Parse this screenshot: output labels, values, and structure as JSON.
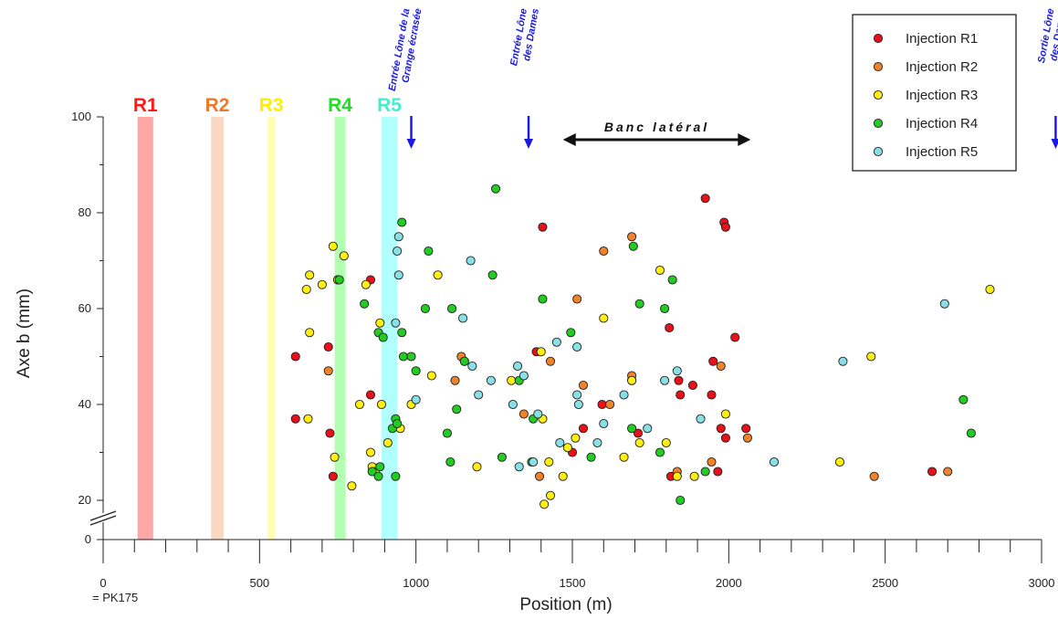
{
  "chart_data": {
    "type": "scatter",
    "title": "",
    "xlabel": "Position (m)",
    "ylabel": "Axe b (mm)",
    "xlim": [
      0,
      3000
    ],
    "ylim": [
      0,
      100
    ],
    "axis_break_y": [
      0,
      20
    ],
    "x_ticks": [
      0,
      500,
      1000,
      1500,
      2000,
      2500,
      3000
    ],
    "y_ticks": [
      0,
      20,
      40,
      60,
      80,
      100
    ],
    "x_tick_sublabel": "= PK175",
    "grid": false,
    "legend_position": "top-right",
    "injection_zones": [
      {
        "label": "R1",
        "x_start": 110,
        "x_end": 160,
        "color": "#ff4d4d",
        "text_color": "#ff1a1a"
      },
      {
        "label": "R2",
        "x_start": 345,
        "x_end": 385,
        "color": "#f4b183",
        "text_color": "#f0782a"
      },
      {
        "label": "R3",
        "x_start": 525,
        "x_end": 550,
        "color": "#ffff66",
        "text_color": "#ffee00"
      },
      {
        "label": "R4",
        "x_start": 740,
        "x_end": 775,
        "color": "#66ff66",
        "text_color": "#22dd22"
      },
      {
        "label": "R5",
        "x_start": 890,
        "x_end": 940,
        "color": "#66ffff",
        "text_color": "#44eecc"
      }
    ],
    "annotations": [
      {
        "lines": [
          "Entrée Lône de la",
          "Grange écrasée"
        ],
        "x": 985
      },
      {
        "lines": [
          "Entrée Lône",
          "des Dames"
        ],
        "x": 1360
      },
      {
        "lines": [
          "Sortie Lône",
          "des Dames"
        ],
        "x": 3045
      }
    ],
    "range_annotation": {
      "label": "Banc latéral",
      "x_start": 1470,
      "x_end": 2070,
      "y": 93
    },
    "series": [
      {
        "name": "Injection R1",
        "color": "#e8101a",
        "points": [
          [
            615,
            50
          ],
          [
            615,
            37
          ],
          [
            720,
            52
          ],
          [
            725,
            34
          ],
          [
            735,
            25
          ],
          [
            750,
            66
          ],
          [
            855,
            66
          ],
          [
            855,
            42
          ],
          [
            1385,
            51
          ],
          [
            1405,
            77
          ],
          [
            1500,
            30
          ],
          [
            1535,
            35
          ],
          [
            1595,
            40
          ],
          [
            1690,
            45
          ],
          [
            1710,
            34
          ],
          [
            1810,
            56
          ],
          [
            1815,
            25
          ],
          [
            1840,
            45
          ],
          [
            1845,
            42
          ],
          [
            1885,
            44
          ],
          [
            1925,
            83
          ],
          [
            1945,
            42
          ],
          [
            1950,
            49
          ],
          [
            1965,
            26
          ],
          [
            1975,
            35
          ],
          [
            1985,
            78
          ],
          [
            1990,
            77
          ],
          [
            1990,
            33
          ],
          [
            2020,
            54
          ],
          [
            2055,
            35
          ],
          [
            2650,
            26
          ]
        ]
      },
      {
        "name": "Injection R2",
        "color": "#f0822a",
        "points": [
          [
            720,
            47
          ],
          [
            1125,
            45
          ],
          [
            1145,
            50
          ],
          [
            1345,
            38
          ],
          [
            1395,
            25
          ],
          [
            1430,
            49
          ],
          [
            1515,
            62
          ],
          [
            1535,
            44
          ],
          [
            1600,
            72
          ],
          [
            1620,
            40
          ],
          [
            1690,
            75
          ],
          [
            1690,
            46
          ],
          [
            1835,
            26
          ],
          [
            1945,
            28
          ],
          [
            1975,
            48
          ],
          [
            2060,
            33
          ],
          [
            2465,
            25
          ],
          [
            2700,
            26
          ]
        ]
      },
      {
        "name": "Injection R3",
        "color": "#ffee11",
        "points": [
          [
            650,
            64
          ],
          [
            655,
            37
          ],
          [
            660,
            67
          ],
          [
            660,
            55
          ],
          [
            700,
            65
          ],
          [
            735,
            73
          ],
          [
            740,
            29
          ],
          [
            750,
            66
          ],
          [
            770,
            71
          ],
          [
            795,
            23
          ],
          [
            820,
            40
          ],
          [
            840,
            65
          ],
          [
            855,
            30
          ],
          [
            860,
            27
          ],
          [
            870,
            26
          ],
          [
            885,
            57
          ],
          [
            890,
            40
          ],
          [
            910,
            32
          ],
          [
            950,
            35
          ],
          [
            985,
            40
          ],
          [
            1050,
            46
          ],
          [
            1070,
            67
          ],
          [
            1155,
            49
          ],
          [
            1195,
            27
          ],
          [
            1305,
            45
          ],
          [
            1400,
            51
          ],
          [
            1405,
            37
          ],
          [
            1410,
            18
          ],
          [
            1425,
            28
          ],
          [
            1430,
            21
          ],
          [
            1470,
            25
          ],
          [
            1485,
            31
          ],
          [
            1510,
            33
          ],
          [
            1600,
            58
          ],
          [
            1665,
            29
          ],
          [
            1690,
            45
          ],
          [
            1715,
            32
          ],
          [
            1780,
            68
          ],
          [
            1800,
            32
          ],
          [
            1835,
            25
          ],
          [
            1890,
            25
          ],
          [
            1990,
            38
          ],
          [
            2355,
            28
          ],
          [
            2455,
            50
          ],
          [
            2835,
            64
          ]
        ]
      },
      {
        "name": "Injection R4",
        "color": "#22cc22",
        "points": [
          [
            755,
            66
          ],
          [
            835,
            61
          ],
          [
            860,
            26
          ],
          [
            880,
            55
          ],
          [
            880,
            25
          ],
          [
            885,
            27
          ],
          [
            895,
            54
          ],
          [
            925,
            35
          ],
          [
            935,
            37
          ],
          [
            935,
            25
          ],
          [
            940,
            36
          ],
          [
            955,
            78
          ],
          [
            955,
            55
          ],
          [
            960,
            50
          ],
          [
            985,
            50
          ],
          [
            1000,
            47
          ],
          [
            1030,
            60
          ],
          [
            1040,
            72
          ],
          [
            1100,
            34
          ],
          [
            1110,
            28
          ],
          [
            1115,
            60
          ],
          [
            1130,
            39
          ],
          [
            1155,
            49
          ],
          [
            1245,
            67
          ],
          [
            1255,
            85
          ],
          [
            1275,
            29
          ],
          [
            1330,
            45
          ],
          [
            1370,
            28
          ],
          [
            1375,
            37
          ],
          [
            1405,
            62
          ],
          [
            1495,
            55
          ],
          [
            1560,
            29
          ],
          [
            1690,
            35
          ],
          [
            1695,
            73
          ],
          [
            1715,
            61
          ],
          [
            1780,
            30
          ],
          [
            1795,
            60
          ],
          [
            1820,
            66
          ],
          [
            1845,
            20
          ],
          [
            1925,
            26
          ],
          [
            2750,
            41
          ],
          [
            2775,
            34
          ]
        ]
      },
      {
        "name": "Injection R5",
        "color": "#88e0e6",
        "points": [
          [
            935,
            57
          ],
          [
            940,
            72
          ],
          [
            945,
            75
          ],
          [
            945,
            67
          ],
          [
            1000,
            41
          ],
          [
            1150,
            58
          ],
          [
            1175,
            70
          ],
          [
            1180,
            48
          ],
          [
            1200,
            42
          ],
          [
            1240,
            45
          ],
          [
            1310,
            40
          ],
          [
            1325,
            48
          ],
          [
            1330,
            27
          ],
          [
            1345,
            46
          ],
          [
            1375,
            28
          ],
          [
            1390,
            38
          ],
          [
            1450,
            53
          ],
          [
            1460,
            32
          ],
          [
            1515,
            52
          ],
          [
            1515,
            42
          ],
          [
            1520,
            40
          ],
          [
            1580,
            32
          ],
          [
            1600,
            36
          ],
          [
            1665,
            42
          ],
          [
            1740,
            35
          ],
          [
            1795,
            45
          ],
          [
            1835,
            47
          ],
          [
            1910,
            37
          ],
          [
            2145,
            28
          ],
          [
            2365,
            49
          ],
          [
            2690,
            61
          ]
        ]
      }
    ]
  }
}
